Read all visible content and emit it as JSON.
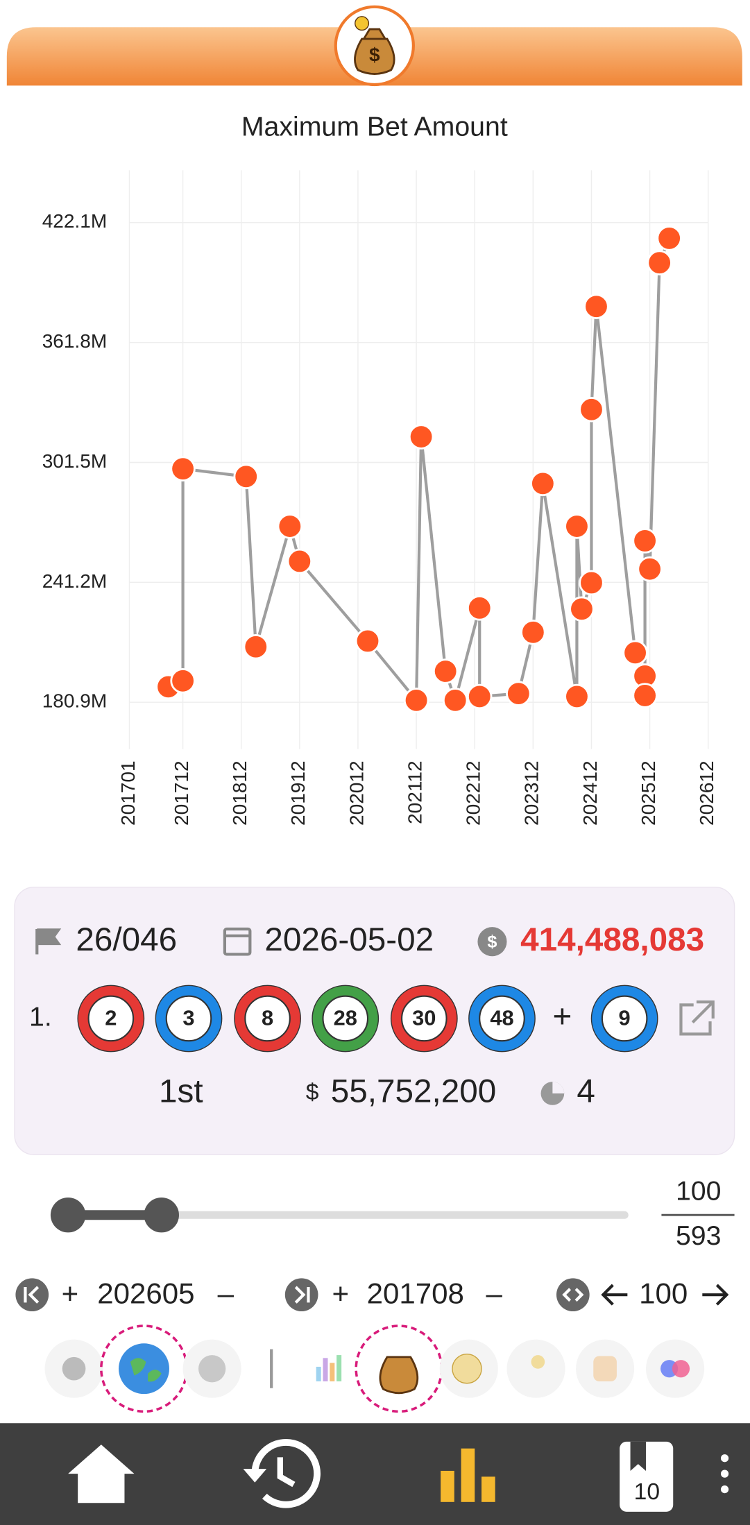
{
  "chart_data": {
    "type": "line",
    "title": "Maximum Bet Amount",
    "x": [
      "201709",
      "201712",
      "201712",
      "201901",
      "201903",
      "201910",
      "201912",
      "202102",
      "202112",
      "202201",
      "202206",
      "202208",
      "202301",
      "202301",
      "202309",
      "202312",
      "202402",
      "202409",
      "202409",
      "202410",
      "202412",
      "202412",
      "202501",
      "202509",
      "202511",
      "202511",
      "202511",
      "202512",
      "202602",
      "202604"
    ],
    "values": [
      188.7,
      191.7,
      298.3,
      294.4,
      208.8,
      269.4,
      251.8,
      211.7,
      181.9,
      314.4,
      196.5,
      181.9,
      228.3,
      183.8,
      185.3,
      216.1,
      290.9,
      183.8,
      269.4,
      227.8,
      241.0,
      328.1,
      379.9,
      205.8,
      194.1,
      184.3,
      262.1,
      247.9,
      401.9,
      414.2
    ],
    "color": "#9e9e9e",
    "marker_color": "#ff5722",
    "xlim": [
      "201701",
      "202612"
    ],
    "xticks": [
      "201701",
      "201712",
      "201812",
      "201912",
      "202012",
      "202112",
      "202212",
      "202312",
      "202412",
      "202512",
      "202612"
    ],
    "ylim": [
      157.4,
      448.4
    ],
    "yticks": [
      {
        "value": 180.9,
        "label": "180.9M"
      },
      {
        "value": 241.2,
        "label": "241.2M"
      },
      {
        "value": 301.5,
        "label": "301.5M"
      },
      {
        "value": 361.8,
        "label": "361.8M"
      },
      {
        "value": 422.1,
        "label": "422.1M"
      }
    ],
    "grid": true
  },
  "draw": {
    "number": "26/046",
    "date": "2026-05-02",
    "jackpot": "414,488,083",
    "row_label": "1.",
    "balls": [
      {
        "number": 2,
        "color": "#e53935"
      },
      {
        "number": 3,
        "color": "#1e88e5"
      },
      {
        "number": 8,
        "color": "#e53935"
      },
      {
        "number": 28,
        "color": "#43a047"
      },
      {
        "number": 30,
        "color": "#e53935"
      },
      {
        "number": 48,
        "color": "#1e88e5"
      }
    ],
    "plus": "+",
    "bonus": {
      "number": 9,
      "color": "#1e88e5"
    },
    "tier": "1st",
    "currency": "$",
    "prize": "55,752,200",
    "winners": 4
  },
  "slider": {
    "value": 100,
    "total": 593
  },
  "controls": {
    "start": "202605",
    "end": "201708",
    "step": 100,
    "plus": "+",
    "minus": "–"
  },
  "nav": {
    "badge": 10
  }
}
